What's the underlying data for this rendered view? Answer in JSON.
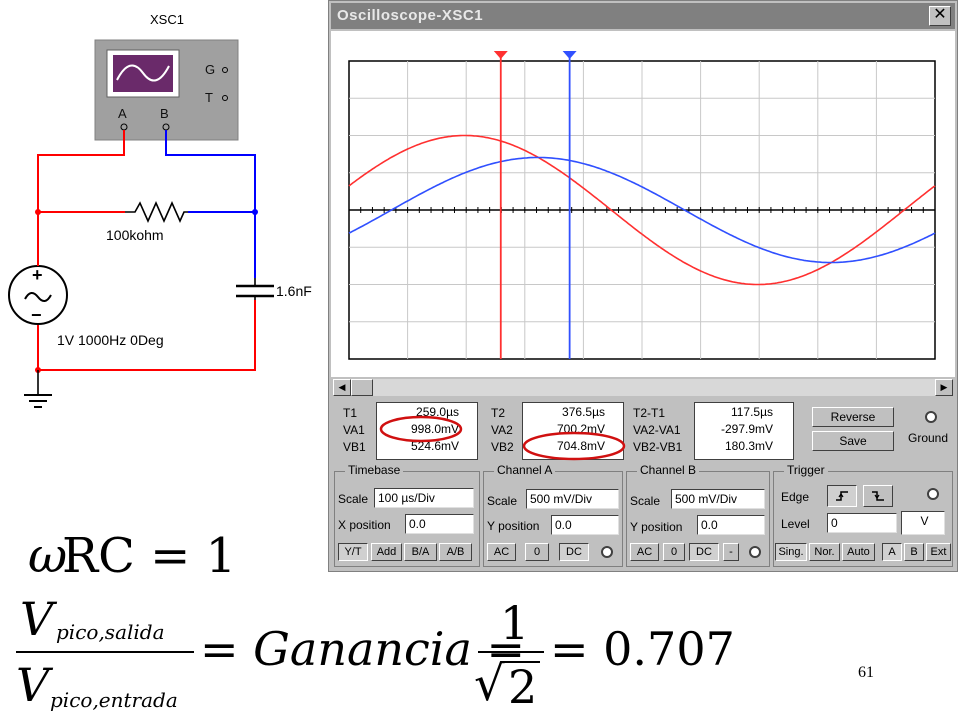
{
  "circuit": {
    "scope_name": "XSC1",
    "terminals": {
      "a": "A",
      "b": "B",
      "g": "G",
      "t": "T"
    },
    "resistor_label": "100kohm",
    "capacitor_label": "1.6nF",
    "source_label": "1V 1000Hz 0Deg",
    "source_plus": "+",
    "source_minus": "−"
  },
  "window": {
    "title": "Oscilloscope-XSC1",
    "close": "✕"
  },
  "chart_data": {
    "type": "line",
    "grid": true,
    "x_divisions": 10,
    "y_divisions": 8,
    "series": [
      {
        "color": "#ff3030",
        "description": "channel A input",
        "amplitude_div": 2,
        "period_div": 10,
        "phase_div": 0
      },
      {
        "color": "#3050ff",
        "description": "channel B output",
        "amplitude_div": 1.41,
        "period_div": 10,
        "phase_div": -1.25
      }
    ],
    "cursors": [
      {
        "name": "T1",
        "color": "#ff3030",
        "x_div": 2.59
      },
      {
        "name": "T2",
        "color": "#3050ff",
        "x_div": 3.765
      }
    ]
  },
  "readouts": {
    "t1": {
      "label": "T1",
      "value": "259.0µs"
    },
    "va1": {
      "label": "VA1",
      "value": "998.0mV"
    },
    "vb1": {
      "label": "VB1",
      "value": "524.6mV"
    },
    "t2": {
      "label": "T2",
      "value": "376.5µs"
    },
    "va2": {
      "label": "VA2",
      "value": "700.2mV"
    },
    "vb2": {
      "label": "VB2",
      "value": "704.8mV"
    },
    "t2t1": {
      "label": "T2-T1",
      "value": "117.5µs"
    },
    "va2va1": {
      "label": "VA2-VA1",
      "value": "-297.9mV"
    },
    "vb2vb1": {
      "label": "VB2-VB1",
      "value": "180.3mV"
    }
  },
  "buttons": {
    "reverse": "Reverse",
    "save": "Save",
    "ground": "Ground"
  },
  "timebase": {
    "title": "Timebase",
    "scale_label": "Scale",
    "scale_value": "100 µs/Div",
    "xpos_label": "X position",
    "xpos_value": "0.0",
    "modes": [
      "Y/T",
      "Add",
      "B/A",
      "A/B"
    ]
  },
  "channel_a": {
    "title": "Channel A",
    "scale_label": "Scale",
    "scale_value": "500 mV/Div",
    "ypos_label": "Y position",
    "ypos_value": "0.0",
    "coupling": [
      "AC",
      "0",
      "DC"
    ]
  },
  "channel_b": {
    "title": "Channel B",
    "scale_label": "Scale",
    "scale_value": "500 mV/Div",
    "ypos_label": "Y position",
    "ypos_value": "0.0",
    "coupling": [
      "AC",
      "0",
      "DC",
      "-"
    ]
  },
  "trigger": {
    "title": "Trigger",
    "edge_label": "Edge",
    "level_label": "Level",
    "level_value": "0",
    "level_unit": "V",
    "modes": [
      "Sing.",
      "Nor.",
      "Auto"
    ],
    "sources": [
      "A",
      "B",
      "Ext"
    ]
  },
  "formulas": {
    "omega": "ω",
    "rc_eq": "RC = 1",
    "v": "V",
    "sub_out": "pico,salida",
    "sub_in": "pico,entrada",
    "gain_eq": "= Ganancia =",
    "one": "1",
    "sqrt_sym": "√",
    "two": "2",
    "result": "= 0.707"
  },
  "slide_number": "61"
}
